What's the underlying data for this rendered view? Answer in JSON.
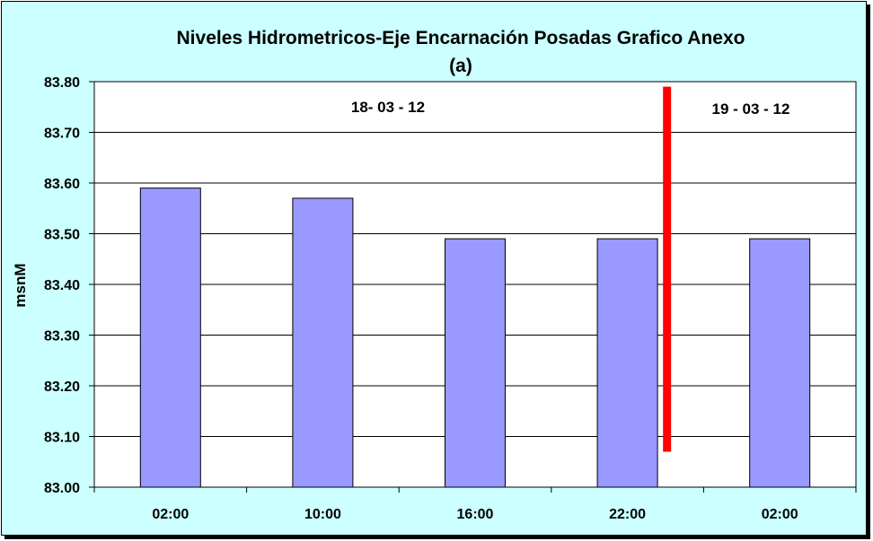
{
  "chart_data": {
    "type": "bar",
    "title": "Niveles Hidrometricos-Eje Encarnación Posadas Grafico Anexo",
    "subtitle": "(a)",
    "ylabel": "msnM",
    "xlabel": "",
    "categories": [
      "02:00",
      "10:00",
      "16:00",
      "22:00",
      "02:00"
    ],
    "values": [
      83.59,
      83.57,
      83.49,
      83.49,
      83.49
    ],
    "ylim": [
      83.0,
      83.8
    ],
    "yticks": [
      "83.00",
      "83.10",
      "83.20",
      "83.30",
      "83.40",
      "83.50",
      "83.60",
      "83.70",
      "83.80"
    ],
    "grid": true,
    "legend": "none",
    "annotations": [
      "18- 03 - 12",
      "19 - 03 - 12"
    ],
    "divider": {
      "from": 83.07,
      "to": 83.79
    },
    "colors": {
      "bar": "#9999ff",
      "background": "#ccffff",
      "plot": "#ffffff",
      "divider": "#ff0000"
    }
  }
}
